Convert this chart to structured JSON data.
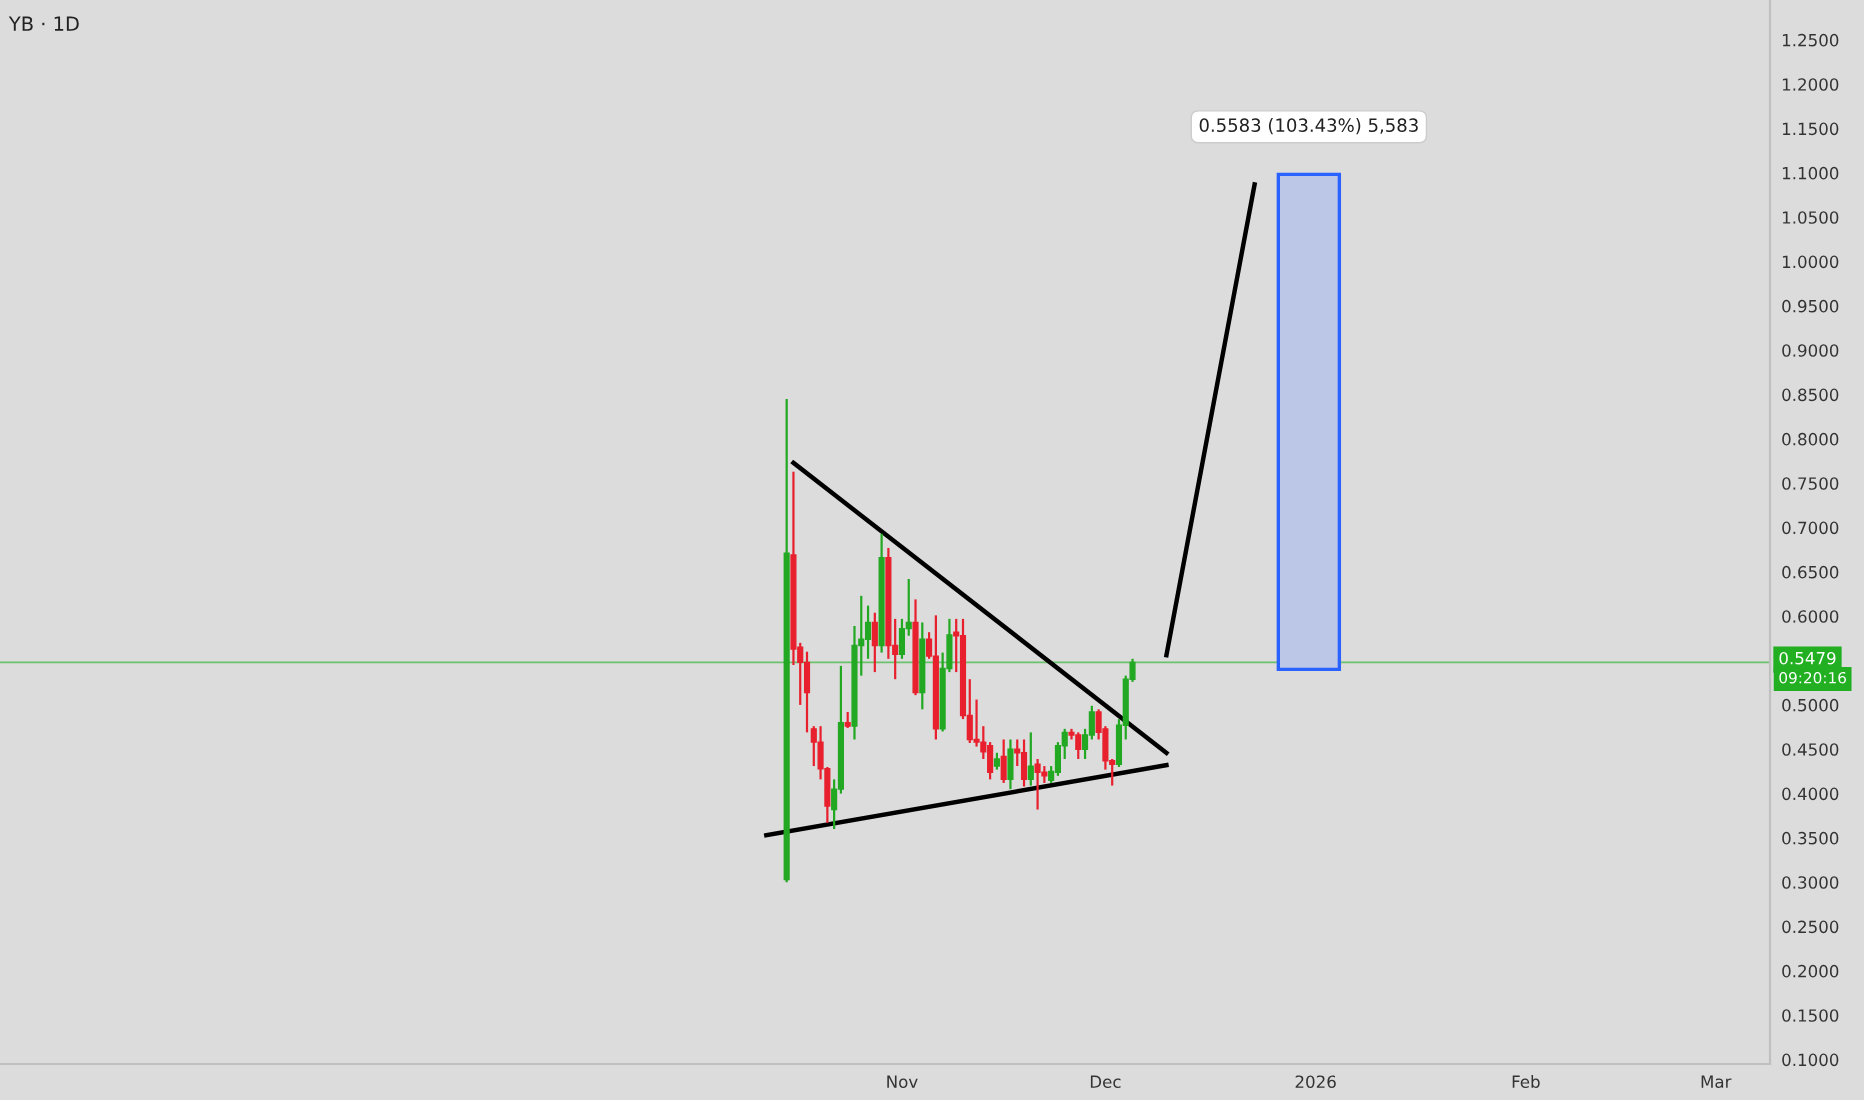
{
  "chart_data": {
    "type": "candlestick",
    "title": "YB · 1D",
    "xlim": [
      "2025-06-21",
      "2026-03-09"
    ],
    "xticks": [
      {
        "value": "2025-11-01",
        "label": "Nov"
      },
      {
        "value": "2025-12-01",
        "label": "Dec"
      },
      {
        "value": "2026-01-01",
        "label": "2026"
      },
      {
        "value": "2026-02-01",
        "label": "Feb"
      },
      {
        "value": "2026-03-01",
        "label": "Mar"
      }
    ],
    "ylim": [
      0.095,
      1.295
    ],
    "yticks": [
      {
        "value": 0.1,
        "label": "0.1000"
      },
      {
        "value": 0.15,
        "label": "0.1500"
      },
      {
        "value": 0.2,
        "label": "0.2000"
      },
      {
        "value": 0.25,
        "label": "0.2500"
      },
      {
        "value": 0.3,
        "label": "0.3000"
      },
      {
        "value": 0.35,
        "label": "0.3500"
      },
      {
        "value": 0.4,
        "label": "0.4000"
      },
      {
        "value": 0.45,
        "label": "0.4500"
      },
      {
        "value": 0.6,
        "label": "0.6000"
      },
      {
        "value": 0.65,
        "label": "0.6500"
      },
      {
        "value": 0.7,
        "label": "0.7000"
      },
      {
        "value": 0.75,
        "label": "0.7500"
      },
      {
        "value": 0.8,
        "label": "0.8000"
      },
      {
        "value": 0.85,
        "label": "0.8500"
      },
      {
        "value": 0.9,
        "label": "0.9000"
      },
      {
        "value": 0.95,
        "label": "0.9500"
      },
      {
        "value": 1.0,
        "label": "1.0000"
      },
      {
        "value": 1.05,
        "label": "1.0500"
      },
      {
        "value": 1.1,
        "label": "1.1000"
      },
      {
        "value": 1.15,
        "label": "1.1500"
      },
      {
        "value": 1.2,
        "label": "1.2000"
      },
      {
        "value": 1.25,
        "label": "1.2500"
      },
      {
        "value": 0.5,
        "label": "0.5000"
      }
    ],
    "grid": false,
    "legend": false,
    "ref_lines": [
      {
        "axis": "y",
        "value": 0.5479,
        "label": "0.5479",
        "color": "#22b022"
      }
    ],
    "annotations": [
      "09:20:16",
      {
        "text": "0.5583 (103.43%) 5,583",
        "x": "2025-12-31",
        "y": 1.0983
      }
    ],
    "series": [
      {
        "x": [
          "2025-10-15",
          "2025-10-16",
          "2025-10-17",
          "2025-10-18",
          "2025-10-19",
          "2025-10-20",
          "2025-10-21",
          "2025-10-22",
          "2025-10-23",
          "2025-10-24",
          "2025-10-25",
          "2025-10-26",
          "2025-10-27",
          "2025-10-28",
          "2025-10-29",
          "2025-10-30",
          "2025-10-31",
          "2025-11-01",
          "2025-11-02",
          "2025-11-03",
          "2025-11-04",
          "2025-11-05",
          "2025-11-06",
          "2025-11-07",
          "2025-11-08",
          "2025-11-09",
          "2025-11-10",
          "2025-11-11",
          "2025-11-12",
          "2025-11-13",
          "2025-11-14",
          "2025-11-15",
          "2025-11-16",
          "2025-11-17",
          "2025-11-18",
          "2025-11-19",
          "2025-11-20",
          "2025-11-21",
          "2025-11-22",
          "2025-11-23",
          "2025-11-24",
          "2025-11-25",
          "2025-11-26",
          "2025-11-27",
          "2025-11-28",
          "2025-11-29",
          "2025-11-30",
          "2025-12-01",
          "2025-12-02",
          "2025-12-03",
          "2025-12-04",
          "2025-12-05"
        ],
        "ohlc": [
          [
            0.303,
            0.845,
            0.3,
            0.671
          ],
          [
            0.669,
            0.763,
            0.545,
            0.563
          ],
          [
            0.565,
            0.57,
            0.5,
            0.548
          ],
          [
            0.548,
            0.56,
            0.469,
            0.514
          ],
          [
            0.473,
            0.476,
            0.431,
            0.458
          ],
          [
            0.458,
            0.476,
            0.416,
            0.428
          ],
          [
            0.428,
            0.43,
            0.367,
            0.386
          ],
          [
            0.382,
            0.416,
            0.36,
            0.405
          ],
          [
            0.405,
            0.544,
            0.4,
            0.48
          ],
          [
            0.48,
            0.492,
            0.474,
            0.476
          ],
          [
            0.476,
            0.589,
            0.461,
            0.567
          ],
          [
            0.567,
            0.623,
            0.533,
            0.574
          ],
          [
            0.574,
            0.612,
            0.552,
            0.593
          ],
          [
            0.593,
            0.604,
            0.537,
            0.567
          ],
          [
            0.567,
            0.693,
            0.559,
            0.666
          ],
          [
            0.666,
            0.677,
            0.552,
            0.567
          ],
          [
            0.567,
            0.597,
            0.529,
            0.557
          ],
          [
            0.557,
            0.597,
            0.552,
            0.586
          ],
          [
            0.586,
            0.642,
            0.578,
            0.593
          ],
          [
            0.593,
            0.619,
            0.511,
            0.514
          ],
          [
            0.514,
            0.593,
            0.495,
            0.574
          ],
          [
            0.574,
            0.582,
            0.552,
            0.555
          ],
          [
            0.555,
            0.601,
            0.461,
            0.473
          ],
          [
            0.473,
            0.559,
            0.47,
            0.541
          ],
          [
            0.541,
            0.597,
            0.537,
            0.579
          ],
          [
            0.582,
            0.597,
            0.537,
            0.578
          ],
          [
            0.578,
            0.597,
            0.484,
            0.488
          ],
          [
            0.488,
            0.529,
            0.457,
            0.461
          ],
          [
            0.461,
            0.506,
            0.453,
            0.458
          ],
          [
            0.458,
            0.476,
            0.439,
            0.447
          ],
          [
            0.454,
            0.458,
            0.416,
            0.424
          ],
          [
            0.431,
            0.446,
            0.427,
            0.439
          ],
          [
            0.442,
            0.461,
            0.412,
            0.416
          ],
          [
            0.416,
            0.461,
            0.405,
            0.45
          ],
          [
            0.45,
            0.461,
            0.431,
            0.446
          ],
          [
            0.446,
            0.461,
            0.408,
            0.416
          ],
          [
            0.416,
            0.469,
            0.409,
            0.431
          ],
          [
            0.433,
            0.439,
            0.382,
            0.424
          ],
          [
            0.424,
            0.431,
            0.412,
            0.42
          ],
          [
            0.415,
            0.431,
            0.412,
            0.425
          ],
          [
            0.424,
            0.458,
            0.42,
            0.454
          ],
          [
            0.454,
            0.473,
            0.439,
            0.469
          ],
          [
            0.469,
            0.473,
            0.461,
            0.466
          ],
          [
            0.466,
            0.469,
            0.439,
            0.45
          ],
          [
            0.45,
            0.473,
            0.439,
            0.466
          ],
          [
            0.466,
            0.499,
            0.461,
            0.492
          ],
          [
            0.492,
            0.495,
            0.461,
            0.469
          ],
          [
            0.473,
            0.476,
            0.427,
            0.437
          ],
          [
            0.437,
            0.439,
            0.409,
            0.433
          ],
          [
            0.433,
            0.484,
            0.43,
            0.477
          ],
          [
            0.477,
            0.533,
            0.461,
            0.529
          ],
          [
            0.529,
            0.552,
            0.526,
            0.5479
          ]
        ],
        "colors": [
          "#22a822",
          "#e8202e",
          "#e8202e",
          "#e8202e",
          "#e8202e",
          "#e8202e",
          "#e8202e",
          "#22a822",
          "#22a822",
          "#e8202e",
          "#22a822",
          "#22a822",
          "#22a822",
          "#e8202e",
          "#22a822",
          "#e8202e",
          "#e8202e",
          "#22a822",
          "#22a822",
          "#e8202e",
          "#22a822",
          "#e8202e",
          "#e8202e",
          "#22a822",
          "#22a822",
          "#e8202e",
          "#e8202e",
          "#e8202e",
          "#e8202e",
          "#e8202e",
          "#e8202e",
          "#22a822",
          "#e8202e",
          "#22a822",
          "#e8202e",
          "#e8202e",
          "#22a822",
          "#e8202e",
          "#e8202e",
          "#22a822",
          "#22a822",
          "#22a822",
          "#e8202e",
          "#e8202e",
          "#22a822",
          "#22a822",
          "#e8202e",
          "#e8202e",
          "#e8202e",
          "#22a822",
          "#22a822",
          "#22a822"
        ]
      },
      {
        "type": "line",
        "color": "#000000",
        "x": [
          "2025-10-16",
          "2025-12-10"
        ],
        "values": [
          0.773,
          0.446
        ]
      },
      {
        "type": "line",
        "color": "#000000",
        "x": [
          "2025-10-12",
          "2025-12-10"
        ],
        "values": [
          0.353,
          0.432
        ]
      },
      {
        "type": "line",
        "color": "#000000",
        "x": [
          "2025-12-10",
          "2025-12-23"
        ],
        "values": [
          0.556,
          1.087
        ]
      },
      {
        "type": "bar",
        "color": "#bcc6e6",
        "x": [
          "2025-12-31"
        ],
        "base": [
          0.54
        ],
        "values": [
          0.5583
        ]
      }
    ]
  }
}
